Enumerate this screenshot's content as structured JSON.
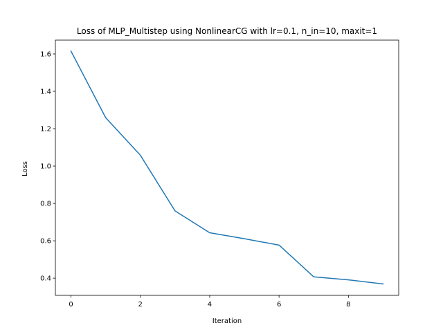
{
  "chart_data": {
    "type": "line",
    "title": "Loss of MLP_Multistep using NonlinearCG with lr=0.1, n_in=10, maxit=1",
    "xlabel": "Iteration",
    "ylabel": "Loss",
    "xlim": [
      -0.45,
      9.45
    ],
    "ylim": [
      0.308,
      1.674
    ],
    "xticks": [
      0,
      2,
      4,
      6,
      8
    ],
    "yticks": [
      0.4,
      0.6,
      0.8,
      1.0,
      1.2,
      1.4,
      1.6
    ],
    "grid": false,
    "legend": "none",
    "series": [
      {
        "color": "#1f77b4",
        "x": [
          0,
          1,
          2,
          3,
          4,
          5,
          6,
          7,
          8,
          9
        ],
        "y": [
          1.615,
          1.259,
          1.058,
          0.76,
          0.643,
          0.611,
          0.577,
          0.407,
          0.391,
          0.369
        ]
      }
    ]
  }
}
